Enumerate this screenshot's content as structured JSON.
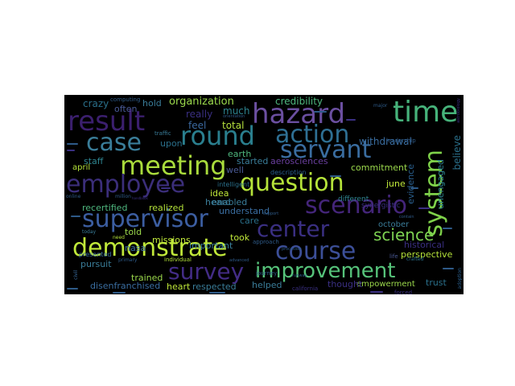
{
  "words": [
    {
      "text": "hazard",
      "color": "#6b4fa0",
      "size": 34
    },
    {
      "text": "time",
      "color": "#46b27a",
      "size": 36
    },
    {
      "text": "result",
      "color": "#3b1f6e",
      "size": 34
    },
    {
      "text": "round",
      "color": "#2a7f8e",
      "size": 32
    },
    {
      "text": "action",
      "color": "#2e6f93",
      "size": 30
    },
    {
      "text": "case",
      "color": "#3a7d99",
      "size": 30
    },
    {
      "text": "servant",
      "color": "#3a6da0",
      "size": 30
    },
    {
      "text": "meeting",
      "color": "#a9db3c",
      "size": 32
    },
    {
      "text": "employee",
      "color": "#3b2e7a",
      "size": 30
    },
    {
      "text": "question",
      "color": "#b5e33a",
      "size": 30
    },
    {
      "text": "system",
      "color": "#7fd24a",
      "size": 30
    },
    {
      "text": "scenario",
      "color": "#44257a",
      "size": 30
    },
    {
      "text": "supervisor",
      "color": "#3c5ea1",
      "size": 30
    },
    {
      "text": "center",
      "color": "#3a2f82",
      "size": 28
    },
    {
      "text": "demonstrate",
      "color": "#c0e83a",
      "size": 30
    },
    {
      "text": "course",
      "color": "#3c4f98",
      "size": 30
    },
    {
      "text": "science",
      "color": "#7dd152",
      "size": 20
    },
    {
      "text": "survey",
      "color": "#432c86",
      "size": 28
    },
    {
      "text": "improvement",
      "color": "#56c37a",
      "size": 26
    },
    {
      "text": "organization",
      "color": "#9bd94c",
      "size": 13
    },
    {
      "text": "credibility",
      "color": "#4fb87f",
      "size": 12
    },
    {
      "text": "crazy",
      "color": "#2a6f8a",
      "size": 12
    },
    {
      "text": "hold",
      "color": "#3a7d99",
      "size": 11
    },
    {
      "text": "often",
      "color": "#4a5a96",
      "size": 11
    },
    {
      "text": "much",
      "color": "#2e8490",
      "size": 12
    },
    {
      "text": "really",
      "color": "#3a2f82",
      "size": 12
    },
    {
      "text": "feel",
      "color": "#3b6aa0",
      "size": 12
    },
    {
      "text": "total",
      "color": "#b4e03c",
      "size": 12
    },
    {
      "text": "upon",
      "color": "#2a6f8a",
      "size": 11
    },
    {
      "text": "withdrawal",
      "color": "#3a6da0",
      "size": 12
    },
    {
      "text": "staff",
      "color": "#2e8490",
      "size": 11
    },
    {
      "text": "april",
      "color": "#b5e33a",
      "size": 10
    },
    {
      "text": "earth",
      "color": "#4fb87f",
      "size": 11
    },
    {
      "text": "started",
      "color": "#3a7d99",
      "size": 11
    },
    {
      "text": "well",
      "color": "#4a5a96",
      "size": 11
    },
    {
      "text": "aerosciences",
      "color": "#6a3f9e",
      "size": 11
    },
    {
      "text": "commitment",
      "color": "#9bd94c",
      "size": 11
    },
    {
      "text": "believe",
      "color": "#2a6f8a",
      "size": 12
    },
    {
      "text": "unengaged",
      "color": "#2e8490",
      "size": 11
    },
    {
      "text": "evidence",
      "color": "#2a5f8e",
      "size": 11
    },
    {
      "text": "idea",
      "color": "#c0e83a",
      "size": 11
    },
    {
      "text": "heard",
      "color": "#3a7d99",
      "size": 11
    },
    {
      "text": "enabled",
      "color": "#3a7d99",
      "size": 11
    },
    {
      "text": "realized",
      "color": "#b5e33a",
      "size": 11
    },
    {
      "text": "recertified",
      "color": "#4fb87f",
      "size": 11
    },
    {
      "text": "understand",
      "color": "#3a6da0",
      "size": 11
    },
    {
      "text": "june",
      "color": "#c0e83a",
      "size": 11
    },
    {
      "text": "october",
      "color": "#3a7d99",
      "size": 10
    },
    {
      "text": "care",
      "color": "#2a6f8a",
      "size": 11
    },
    {
      "text": "told",
      "color": "#9bd94c",
      "size": 11
    },
    {
      "text": "nasa",
      "color": "#3a6da0",
      "size": 11
    },
    {
      "text": "important",
      "color": "#3a7d99",
      "size": 11
    },
    {
      "text": "took",
      "color": "#c0e83a",
      "size": 11
    },
    {
      "text": "missions",
      "color": "#c0e83a",
      "size": 11
    },
    {
      "text": "historical",
      "color": "#3a2f82",
      "size": 11
    },
    {
      "text": "pursuit",
      "color": "#3a7d99",
      "size": 11
    },
    {
      "text": "perspective",
      "color": "#b5e33a",
      "size": 11
    },
    {
      "text": "trained",
      "color": "#9bd94c",
      "size": 11
    },
    {
      "text": "trust",
      "color": "#2a6f8a",
      "size": 11
    },
    {
      "text": "helped",
      "color": "#3a7d99",
      "size": 11
    },
    {
      "text": "empowerment",
      "color": "#9bd94c",
      "size": 10
    },
    {
      "text": "disenfranchised",
      "color": "#3a6da0",
      "size": 11
    },
    {
      "text": "heart",
      "color": "#c0e83a",
      "size": 11
    },
    {
      "text": "respected",
      "color": "#3a7d99",
      "size": 11
    },
    {
      "text": "thought",
      "color": "#3a2f82",
      "size": 11
    },
    {
      "text": "different",
      "color": "#2e8490",
      "size": 9
    },
    {
      "text": "synergistic",
      "color": "#3a2f82",
      "size": 9
    },
    {
      "text": "intelligent",
      "color": "#2a6f8a",
      "size": 8
    },
    {
      "text": "description",
      "color": "#2a5f8e",
      "size": 8
    },
    {
      "text": "presented",
      "color": "#3a6da0",
      "size": 8
    },
    {
      "text": "computing",
      "color": "#2e5a88",
      "size": 7
    },
    {
      "text": "leadership",
      "color": "#2e5a88",
      "size": 7
    },
    {
      "text": "journey",
      "color": "#2e5a88",
      "size": 7
    },
    {
      "text": "approach",
      "color": "#2e5a88",
      "size": 7
    },
    {
      "text": "individual",
      "color": "#b5e33a",
      "size": 7
    },
    {
      "text": "primary",
      "color": "#2e5a88",
      "size": 6
    },
    {
      "text": "traffic",
      "color": "#3a7d99",
      "size": 7
    },
    {
      "text": "california",
      "color": "#3a2f82",
      "size": 7
    },
    {
      "text": "forced",
      "color": "#3a2f82",
      "size": 7
    },
    {
      "text": "life",
      "color": "#4a5a96",
      "size": 7
    },
    {
      "text": "crafted",
      "color": "#2a6f8a",
      "size": 6
    },
    {
      "text": "civil",
      "color": "#3a6da0",
      "size": 6
    },
    {
      "text": "today",
      "color": "#3a7d99",
      "size": 6
    },
    {
      "text": "need",
      "color": "#b5e33a",
      "size": 6
    },
    {
      "text": "adoption",
      "color": "#2a5f8e",
      "size": 6
    },
    {
      "text": "astrobiology",
      "color": "#3a2f82",
      "size": 5
    },
    {
      "text": "advanced",
      "color": "#2e5a88",
      "size": 5
    },
    {
      "text": "online",
      "color": "#2e5a88",
      "size": 6
    },
    {
      "text": "million",
      "color": "#2e5a88",
      "size": 6
    },
    {
      "text": "major",
      "color": "#2e5a88",
      "size": 6
    },
    {
      "text": "orientation",
      "color": "#2e5a88",
      "size": 5
    },
    {
      "text": "processes",
      "color": "#2e5a88",
      "size": 5
    },
    {
      "text": "support",
      "color": "#2e5a88",
      "size": 5
    },
    {
      "text": "contain",
      "color": "#2e5a88",
      "size": 5
    },
    {
      "text": "runway",
      "color": "#2e5a88",
      "size": 5
    },
    {
      "text": "handbook",
      "color": "#3a2f82",
      "size": 4
    }
  ]
}
